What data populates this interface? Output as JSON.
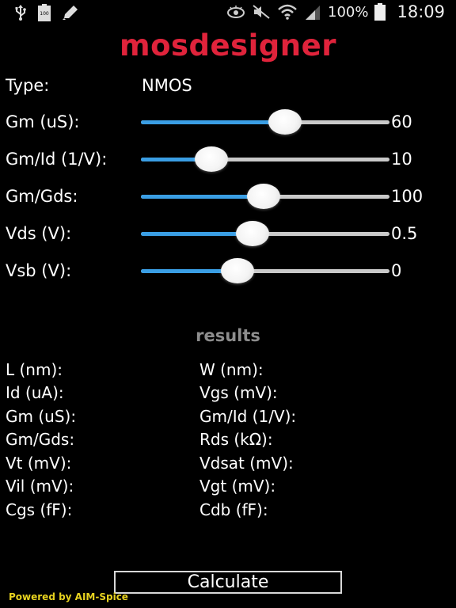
{
  "status_bar": {
    "battery_percent": "100%",
    "time": "18:09",
    "left_icons": [
      "usb-icon",
      "battery-badge-icon",
      "pencil-icon"
    ],
    "right_icons": [
      "eye-icon",
      "mute-icon",
      "wifi-icon",
      "signal-icon",
      "battery-icon"
    ],
    "battery_badge_text": "100"
  },
  "app": {
    "title": "mosdesigner",
    "title_color": "#e0233b"
  },
  "inputs": {
    "type_label": "Type:",
    "type_value": "NMOS",
    "sliders": [
      {
        "label": "Gm (uS):",
        "value": "60",
        "fraction": 0.58
      },
      {
        "label": "Gm/Id (1/V):",
        "value": "10",
        "fraction": 0.285
      },
      {
        "label": "Gm/Gds:",
        "value": "100",
        "fraction": 0.495
      },
      {
        "label": "Vds (V):",
        "value": "0.5",
        "fraction": 0.45
      },
      {
        "label": "Vsb (V):",
        "value": "0",
        "fraction": 0.388
      }
    ],
    "slider_fill_color": "#3a9ee4",
    "slider_track_color": "#c9c9c9"
  },
  "results": {
    "header": "results",
    "left": [
      "L (nm):",
      "Id (uA):",
      "Gm (uS):",
      "Gm/Gds:",
      "Vt (mV):",
      "Vil (mV):",
      "Cgs (fF):"
    ],
    "right": [
      "W (nm):",
      "Vgs (mV):",
      "Gm/Id (1/V):",
      "Rds (kΩ):",
      "Vdsat (mV):",
      "Vgt (mV):",
      "Cdb (fF):"
    ]
  },
  "actions": {
    "calculate_label": "Calculate"
  },
  "footer": {
    "powered_by": "Powered by AIM-Spice",
    "powered_by_color": "#e7d21f"
  }
}
